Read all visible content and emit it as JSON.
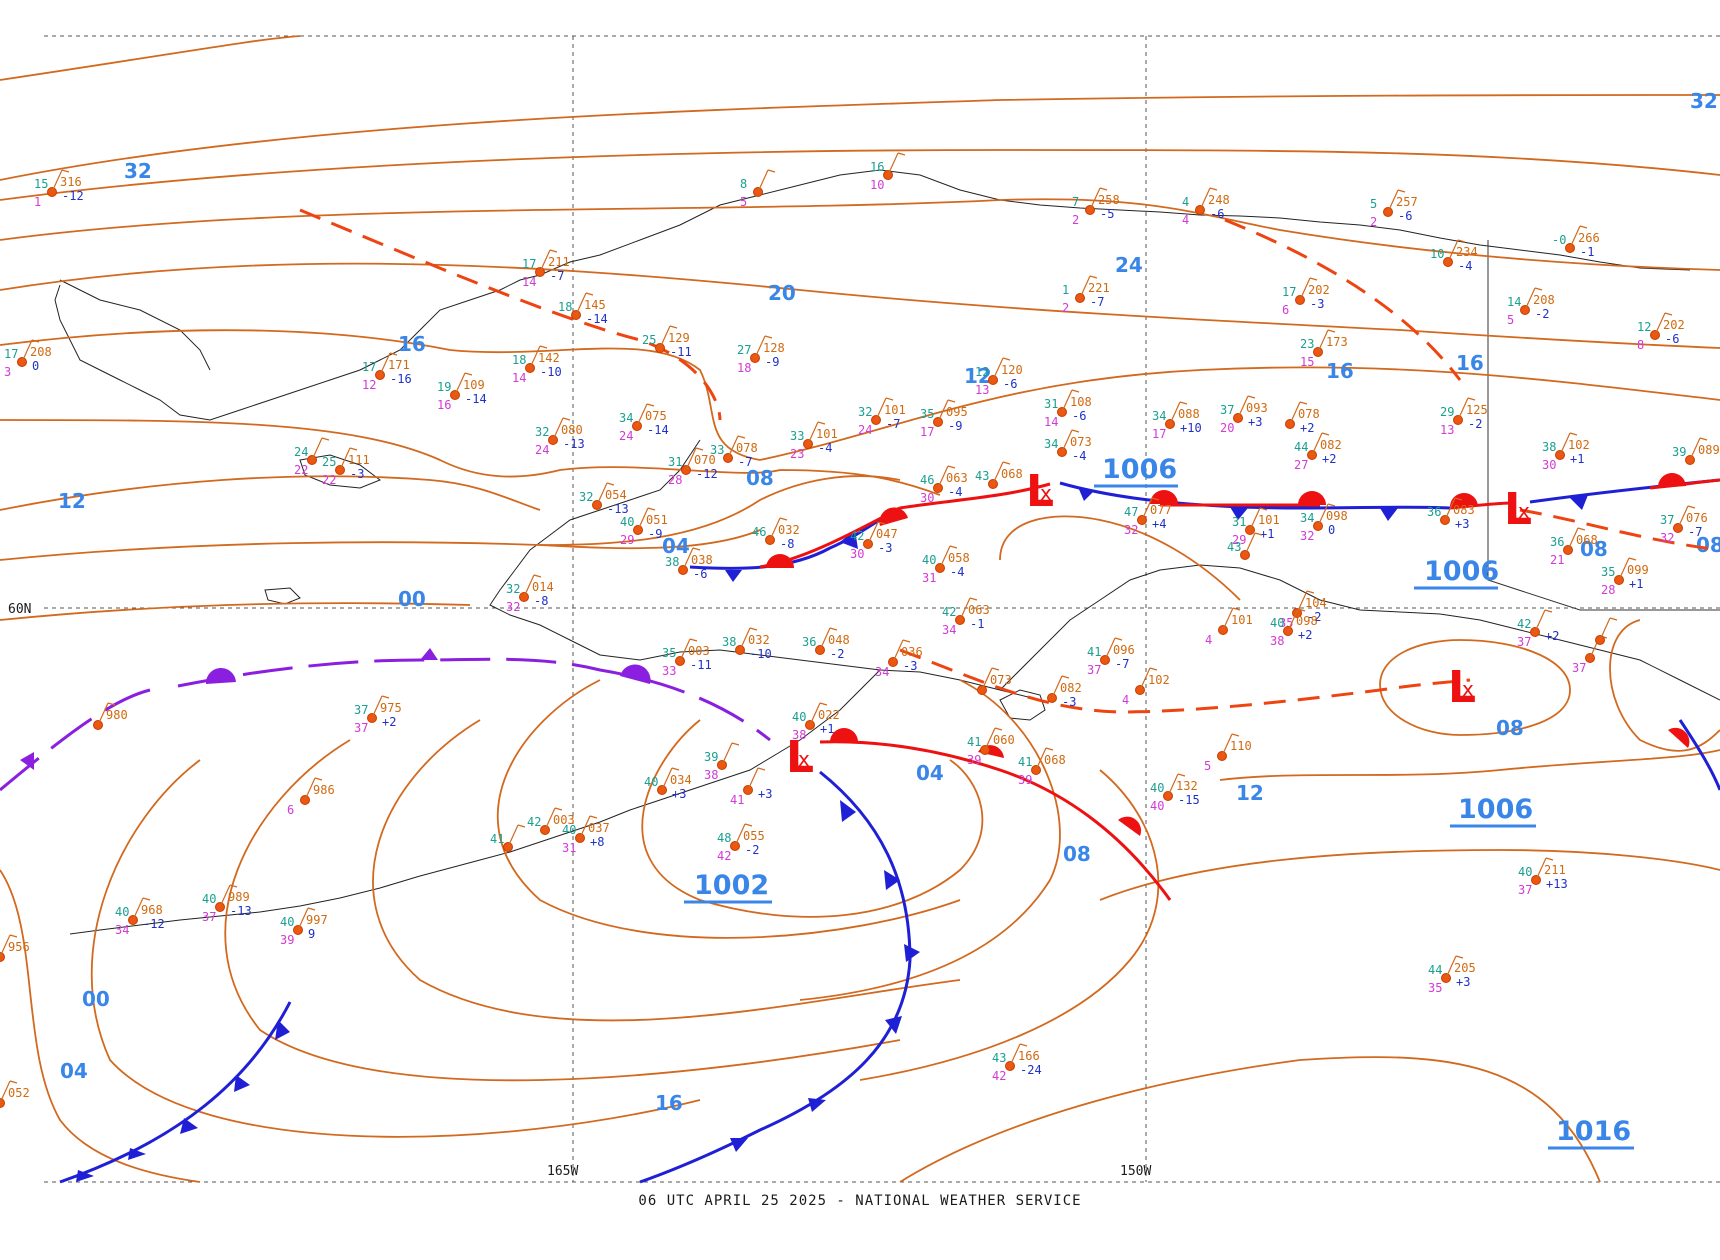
{
  "caption": "06 UTC APRIL 25 2025 - NATIONAL WEATHER SERVICE",
  "colors": {
    "isobar": "#d2691e",
    "isobar_label": "#3a86e8",
    "cold_front": "#1f1fd6",
    "warm_front": "#ee1111",
    "occluded_front": "#8a1fe0",
    "trough": "#ee4411",
    "coastline": "#222222",
    "grid": "#555555"
  },
  "grid_labels": {
    "lat": "60N",
    "lon_west": "165W",
    "lon_east": "150W"
  },
  "isobar_labels": [
    "32",
    "32",
    "24",
    "20",
    "16",
    "16",
    "16",
    "12",
    "12",
    "12",
    "08",
    "08",
    "08",
    "08",
    "08",
    "04",
    "04",
    "04",
    "00",
    "00",
    "16"
  ],
  "pressure_centers": [
    {
      "type": "L",
      "label": "1002"
    },
    {
      "type": "L",
      "label": "1006"
    },
    {
      "type": "L",
      "label": "1006"
    },
    {
      "type": "L",
      "label": "1006"
    },
    {
      "type": "H",
      "label": "1016"
    }
  ],
  "stations": [
    {
      "t": "15",
      "p": "316",
      "d": "1",
      "c": "-12"
    },
    {
      "t": "17",
      "p": "208",
      "d": "3",
      "c": "0"
    },
    {
      "t": "17",
      "p": "171",
      "d": "12",
      "c": "-16"
    },
    {
      "t": "19",
      "p": "109",
      "d": "16",
      "c": "-14"
    },
    {
      "t": "24",
      "p": "",
      "d": "22",
      "c": ""
    },
    {
      "t": "25",
      "p": "111",
      "d": "22",
      "c": "-3"
    },
    {
      "t": "17",
      "p": "211",
      "d": "14",
      "c": "-7"
    },
    {
      "t": "18",
      "p": "145",
      "d": "",
      "c": "-14"
    },
    {
      "t": "18",
      "p": "142",
      "d": "14",
      "c": "-10"
    },
    {
      "t": "25",
      "p": "129",
      "d": "",
      "c": "-11"
    },
    {
      "t": "27",
      "p": "128",
      "d": "18",
      "c": "-9"
    },
    {
      "t": "32",
      "p": "080",
      "d": "24",
      "c": "-13"
    },
    {
      "t": "34",
      "p": "075",
      "d": "24",
      "c": "-14"
    },
    {
      "t": "31",
      "p": "070",
      "d": "28",
      "c": "-12"
    },
    {
      "t": "33",
      "p": "078",
      "d": "",
      "c": "-7"
    },
    {
      "t": "33",
      "p": "101",
      "d": "23",
      "c": "-4"
    },
    {
      "t": "32",
      "p": "101",
      "d": "24",
      "c": "-7"
    },
    {
      "t": "35",
      "p": "095",
      "d": "17",
      "c": "-9"
    },
    {
      "t": "12",
      "p": "120",
      "d": "13",
      "c": "-6"
    },
    {
      "t": "31",
      "p": "108",
      "d": "14",
      "c": "-6"
    },
    {
      "t": "34",
      "p": "073",
      "d": "",
      "c": "-4"
    },
    {
      "t": "46",
      "p": "063",
      "d": "30",
      "c": "-4"
    },
    {
      "t": "43",
      "p": "068",
      "d": "",
      "c": ""
    },
    {
      "t": "42",
      "p": "047",
      "d": "30",
      "c": "-3"
    },
    {
      "t": "40",
      "p": "058",
      "d": "31",
      "c": "-4"
    },
    {
      "t": "46",
      "p": "032",
      "d": "",
      "c": "-8"
    },
    {
      "t": "38",
      "p": "038",
      "d": "",
      "c": "-6"
    },
    {
      "t": "32",
      "p": "054",
      "d": "",
      "c": "-13"
    },
    {
      "t": "40",
      "p": "051",
      "d": "29",
      "c": "-9"
    },
    {
      "t": "32",
      "p": "014",
      "d": "32",
      "c": "-8"
    },
    {
      "t": "8",
      "p": "",
      "d": "5",
      "c": ""
    },
    {
      "t": "16",
      "p": "",
      "d": "10",
      "c": ""
    },
    {
      "t": "7",
      "p": "258",
      "d": "2",
      "c": "-5"
    },
    {
      "t": "4",
      "p": "248",
      "d": "4",
      "c": "-6"
    },
    {
      "t": "1",
      "p": "221",
      "d": "2",
      "c": "-7"
    },
    {
      "t": "5",
      "p": "257",
      "d": "2",
      "c": "-6"
    },
    {
      "t": "17",
      "p": "202",
      "d": "6",
      "c": "-3"
    },
    {
      "t": "10",
      "p": "234",
      "d": "",
      "c": "-4"
    },
    {
      "t": "-0",
      "p": "266",
      "d": "",
      "c": "-1"
    },
    {
      "t": "14",
      "p": "208",
      "d": "5",
      "c": "-2"
    },
    {
      "t": "12",
      "p": "202",
      "d": "8",
      "c": "-6"
    },
    {
      "t": "23",
      "p": "173",
      "d": "15",
      "c": ""
    },
    {
      "t": "29",
      "p": "125",
      "d": "13",
      "c": "-2"
    },
    {
      "t": "38",
      "p": "102",
      "d": "30",
      "c": "+1"
    },
    {
      "t": "39",
      "p": "089",
      "d": "",
      "c": ""
    },
    {
      "t": "34",
      "p": "088",
      "d": "17",
      "c": "+10"
    },
    {
      "t": "37",
      "p": "093",
      "d": "20",
      "c": "+3"
    },
    {
      "t": "",
      "p": "078",
      "d": "",
      "c": "+2"
    },
    {
      "t": "44",
      "p": "082",
      "d": "27",
      "c": "+2"
    },
    {
      "t": "47",
      "p": "077",
      "d": "32",
      "c": "+4"
    },
    {
      "t": "31",
      "p": "101",
      "d": "29",
      "c": "+1"
    },
    {
      "t": "34",
      "p": "098",
      "d": "32",
      "c": "0"
    },
    {
      "t": "36",
      "p": "083",
      "d": "",
      "c": "+3"
    },
    {
      "t": "37",
      "p": "076",
      "d": "32",
      "c": "-7"
    },
    {
      "t": "36",
      "p": "068",
      "d": "21",
      "c": ""
    },
    {
      "t": "35",
      "p": "099",
      "d": "28",
      "c": "+1"
    },
    {
      "t": "43",
      "p": "",
      "d": "",
      "c": ""
    },
    {
      "t": "",
      "p": "104",
      "d": "35",
      "c": "-2"
    },
    {
      "t": "40",
      "p": "098",
      "d": "38",
      "c": "+2"
    },
    {
      "t": "",
      "p": "101",
      "d": "4",
      "c": ""
    },
    {
      "t": "42",
      "p": "",
      "d": "37",
      "c": "+2"
    },
    {
      "t": "42",
      "p": "063",
      "d": "34",
      "c": "-1"
    },
    {
      "t": "41",
      "p": "096",
      "d": "37",
      "c": "-7"
    },
    {
      "t": "",
      "p": "102",
      "d": "4",
      "c": ""
    },
    {
      "t": "",
      "p": "110",
      "d": "5",
      "c": ""
    },
    {
      "t": "40",
      "p": "132",
      "d": "40",
      "c": "-15"
    },
    {
      "t": "41",
      "p": "068",
      "d": "39",
      "c": ""
    },
    {
      "t": "",
      "p": "073",
      "d": "",
      "c": ""
    },
    {
      "t": "",
      "p": "082",
      "d": "",
      "c": "-3"
    },
    {
      "t": "35",
      "p": "003",
      "d": "33",
      "c": "-11"
    },
    {
      "t": "38",
      "p": "032",
      "d": "",
      "c": "-10"
    },
    {
      "t": "36",
      "p": "048",
      "d": "",
      "c": "-2"
    },
    {
      "t": "",
      "p": "036",
      "d": "34",
      "c": "-3"
    },
    {
      "t": "37",
      "p": "975",
      "d": "37",
      "c": "+2"
    },
    {
      "t": "",
      "p": "980",
      "d": "",
      "c": ""
    },
    {
      "t": "",
      "p": "986",
      "d": "6",
      "c": ""
    },
    {
      "t": "40",
      "p": "022",
      "d": "38",
      "c": "+1"
    },
    {
      "t": "39",
      "p": "",
      "d": "38",
      "c": ""
    },
    {
      "t": "40",
      "p": "034",
      "d": "",
      "c": "+3"
    },
    {
      "t": "",
      "p": "",
      "d": "41",
      "c": "+3"
    },
    {
      "t": "41",
      "p": "060",
      "d": "39",
      "c": ""
    },
    {
      "t": "48",
      "p": "055",
      "d": "42",
      "c": "-2"
    },
    {
      "t": "42",
      "p": "003",
      "d": "",
      "c": ""
    },
    {
      "t": "40",
      "p": "037",
      "d": "31",
      "c": "+8"
    },
    {
      "t": "41",
      "p": "",
      "d": "",
      "c": ""
    },
    {
      "t": "40",
      "p": "968",
      "d": "34",
      "c": "-12"
    },
    {
      "t": "40",
      "p": "989",
      "d": "37",
      "c": "-13"
    },
    {
      "t": "40",
      "p": "997",
      "d": "39",
      "c": "9"
    },
    {
      "t": "",
      "p": "956",
      "d": "13",
      "c": ""
    },
    {
      "t": "",
      "p": "052",
      "d": "5",
      "c": ""
    },
    {
      "t": "40",
      "p": "211",
      "d": "37",
      "c": "+13"
    },
    {
      "t": "44",
      "p": "205",
      "d": "35",
      "c": "+3"
    },
    {
      "t": "43",
      "p": "166",
      "d": "42",
      "c": "-24"
    },
    {
      "t": "",
      "p": "",
      "d": "37",
      "c": ""
    },
    {
      "t": "",
      "p": "",
      "d": "",
      "c": ""
    }
  ]
}
